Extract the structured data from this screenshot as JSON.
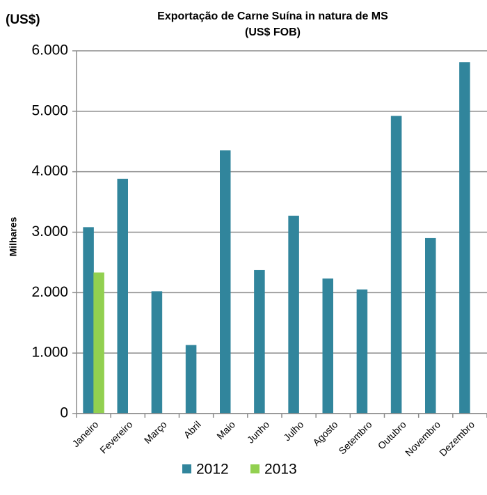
{
  "chart_data": {
    "type": "bar",
    "title": "Exportação de Carne Suína in natura de MS",
    "subtitle": "(US$ FOB)",
    "unit_label": "(US$)",
    "y_label": "Milhares",
    "categories": [
      "Janeiro",
      "Fevereiro",
      "Março",
      "Abril",
      "Maio",
      "Junho",
      "Julho",
      "Agosto",
      "Setembro",
      "Outubro",
      "Novembro",
      "Dezembro"
    ],
    "series": [
      {
        "name": "2012",
        "color": "#31859c",
        "values": [
          3080,
          3880,
          2020,
          1130,
          4350,
          2370,
          3270,
          2230,
          2050,
          4920,
          2900,
          5810
        ]
      },
      {
        "name": "2013",
        "color": "#92d050",
        "values": [
          2330,
          null,
          null,
          null,
          null,
          null,
          null,
          null,
          null,
          null,
          null,
          null
        ]
      }
    ],
    "ylim": [
      0,
      6000
    ],
    "yticks": [
      0,
      {
        "value": 1000,
        "label": "1.000"
      },
      {
        "value": 2000,
        "label": "2.000"
      },
      {
        "value": 3000,
        "label": "3.000"
      },
      {
        "value": 4000,
        "label": "4.000"
      },
      {
        "value": 5000,
        "label": "5.000"
      },
      {
        "value": 6000,
        "label": "6.000"
      }
    ],
    "grid": true,
    "legend": "bottom"
  }
}
